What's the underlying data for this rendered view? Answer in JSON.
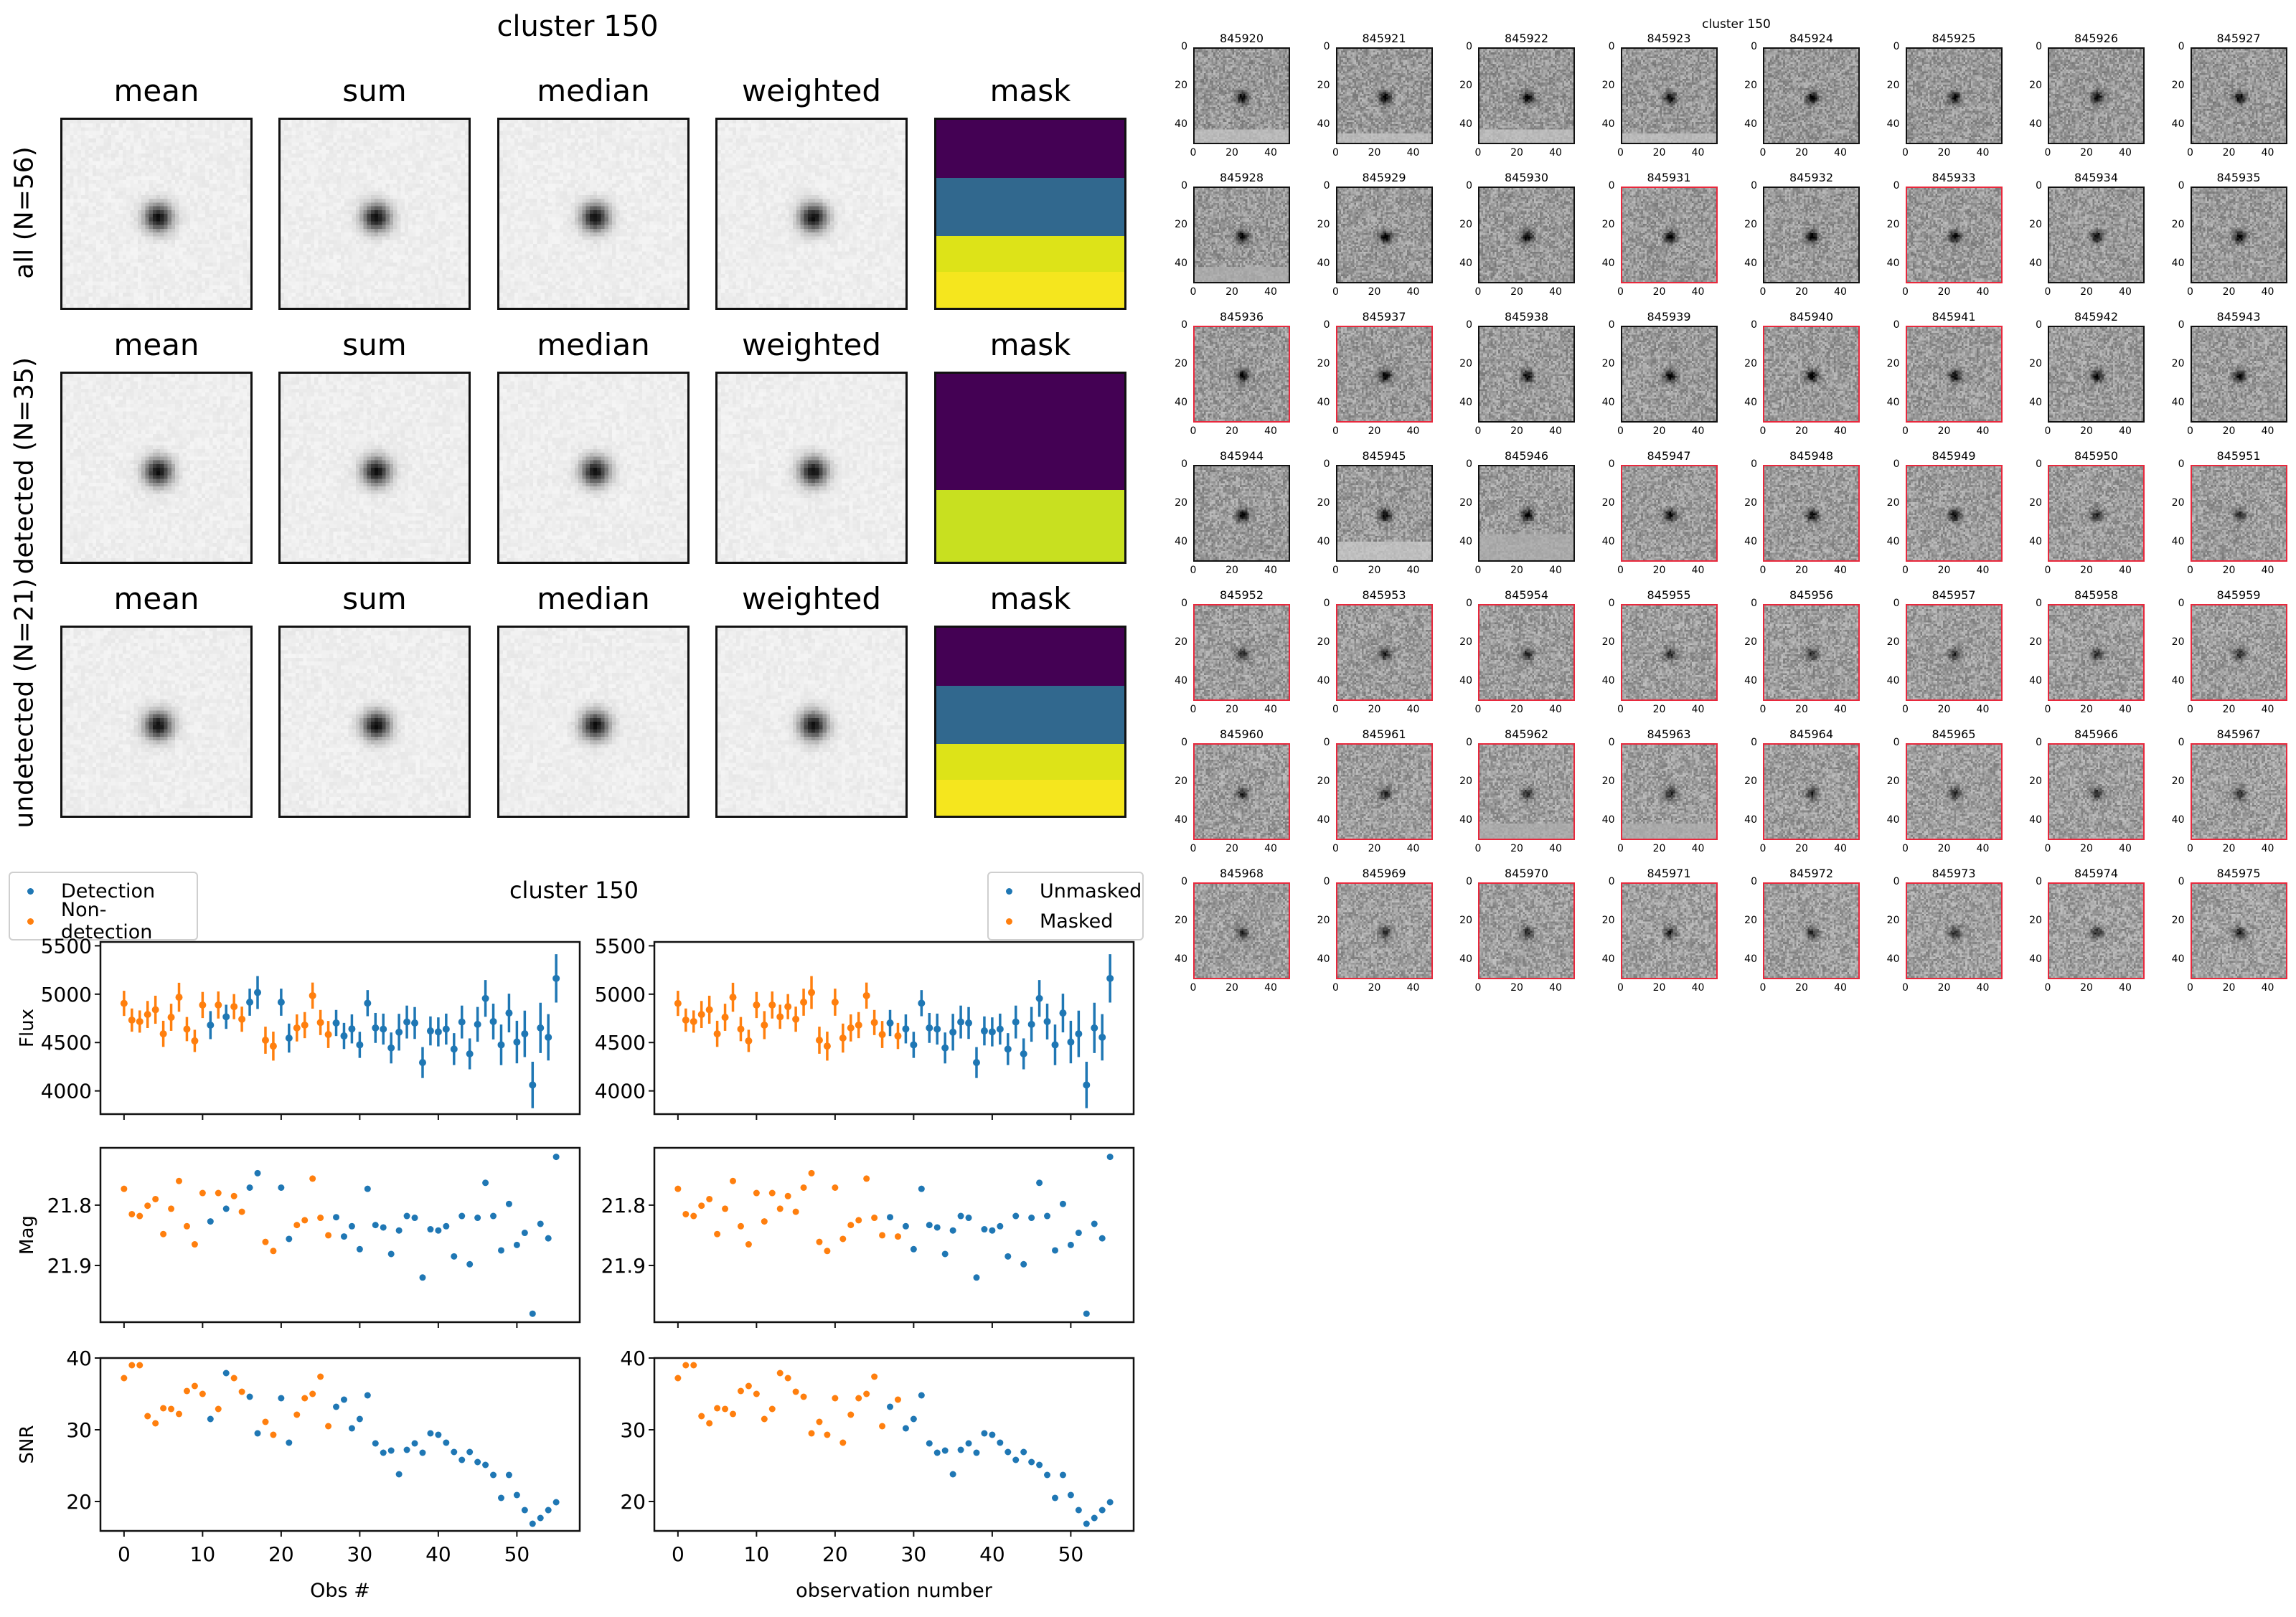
{
  "stamps_figure": {
    "title": "cluster 150",
    "columns": [
      "mean",
      "sum",
      "median",
      "weighted",
      "mask"
    ],
    "rows": [
      {
        "label": "all (N=56)",
        "mask_bands": [
          "#440154",
          "#31688e",
          "#dde318",
          "#f5e61e"
        ]
      },
      {
        "label": "detected (N=35)",
        "mask_bands": [
          "#440154",
          "#440154",
          "#c8e020",
          "#c8e020"
        ]
      },
      {
        "label": "undetected (N=21)",
        "mask_bands": [
          "#440154",
          "#31688e",
          "#dde318",
          "#f5e61e"
        ]
      }
    ]
  },
  "thumbnails_figure": {
    "title": "cluster 150",
    "axis_ticks": [
      "0",
      "20",
      "40"
    ],
    "masked_border_color": "#e8283c",
    "items": [
      {
        "id": "845920",
        "masked": false
      },
      {
        "id": "845921",
        "masked": false
      },
      {
        "id": "845922",
        "masked": false
      },
      {
        "id": "845923",
        "masked": false
      },
      {
        "id": "845924",
        "masked": false
      },
      {
        "id": "845925",
        "masked": false
      },
      {
        "id": "845926",
        "masked": false
      },
      {
        "id": "845927",
        "masked": false
      },
      {
        "id": "845928",
        "masked": false
      },
      {
        "id": "845929",
        "masked": false
      },
      {
        "id": "845930",
        "masked": false
      },
      {
        "id": "845931",
        "masked": true
      },
      {
        "id": "845932",
        "masked": false
      },
      {
        "id": "845933",
        "masked": true
      },
      {
        "id": "845934",
        "masked": false
      },
      {
        "id": "845935",
        "masked": false
      },
      {
        "id": "845936",
        "masked": true
      },
      {
        "id": "845937",
        "masked": true
      },
      {
        "id": "845938",
        "masked": false
      },
      {
        "id": "845939",
        "masked": false
      },
      {
        "id": "845940",
        "masked": true
      },
      {
        "id": "845941",
        "masked": true
      },
      {
        "id": "845942",
        "masked": false
      },
      {
        "id": "845943",
        "masked": false
      },
      {
        "id": "845944",
        "masked": false
      },
      {
        "id": "845945",
        "masked": false
      },
      {
        "id": "845946",
        "masked": false
      },
      {
        "id": "845947",
        "masked": true
      },
      {
        "id": "845948",
        "masked": true
      },
      {
        "id": "845949",
        "masked": true
      },
      {
        "id": "845950",
        "masked": true
      },
      {
        "id": "845951",
        "masked": true
      },
      {
        "id": "845952",
        "masked": true
      },
      {
        "id": "845953",
        "masked": true
      },
      {
        "id": "845954",
        "masked": true
      },
      {
        "id": "845955",
        "masked": true
      },
      {
        "id": "845956",
        "masked": true
      },
      {
        "id": "845957",
        "masked": true
      },
      {
        "id": "845958",
        "masked": true
      },
      {
        "id": "845959",
        "masked": true
      },
      {
        "id": "845960",
        "masked": true
      },
      {
        "id": "845961",
        "masked": true
      },
      {
        "id": "845962",
        "masked": true
      },
      {
        "id": "845963",
        "masked": true
      },
      {
        "id": "845964",
        "masked": true
      },
      {
        "id": "845965",
        "masked": true
      },
      {
        "id": "845966",
        "masked": true
      },
      {
        "id": "845967",
        "masked": true
      },
      {
        "id": "845968",
        "masked": true
      },
      {
        "id": "845969",
        "masked": true
      },
      {
        "id": "845970",
        "masked": true
      },
      {
        "id": "845971",
        "masked": true
      },
      {
        "id": "845972",
        "masked": true
      },
      {
        "id": "845973",
        "masked": true
      },
      {
        "id": "845974",
        "masked": true
      },
      {
        "id": "845975",
        "masked": true
      }
    ]
  },
  "chart_data": {
    "type": "scatter",
    "title": "cluster 150",
    "colors": {
      "blue": "#1f77b4",
      "orange": "#ff7f0e"
    },
    "x": [
      0,
      1,
      2,
      3,
      4,
      5,
      6,
      7,
      8,
      9,
      10,
      11,
      12,
      13,
      14,
      15,
      16,
      17,
      18,
      19,
      20,
      21,
      22,
      23,
      24,
      25,
      26,
      27,
      28,
      29,
      30,
      31,
      32,
      33,
      34,
      35,
      36,
      37,
      38,
      39,
      40,
      41,
      42,
      43,
      44,
      45,
      46,
      47,
      48,
      49,
      50,
      51,
      52,
      53,
      54,
      55
    ],
    "flux": [
      4905,
      4732,
      4717,
      4790,
      4839,
      4590,
      4761,
      4968,
      4639,
      4517,
      4888,
      4680,
      4888,
      4766,
      4871,
      4741,
      4917,
      5017,
      4524,
      4463,
      4917,
      4546,
      4651,
      4680,
      4985,
      4707,
      4583,
      4702,
      4568,
      4641,
      4476,
      4907,
      4651,
      4639,
      4444,
      4607,
      4712,
      4702,
      4293,
      4620,
      4610,
      4639,
      4432,
      4712,
      4383,
      4688,
      4956,
      4717,
      4476,
      4805,
      4505,
      4590,
      4061,
      4651,
      4554,
      5163
    ],
    "flux_err": [
      130,
      120,
      115,
      140,
      145,
      135,
      140,
      150,
      125,
      115,
      135,
      145,
      140,
      125,
      130,
      130,
      140,
      170,
      140,
      150,
      140,
      150,
      140,
      135,
      135,
      130,
      140,
      135,
      135,
      150,
      135,
      135,
      155,
      160,
      160,
      190,
      170,
      165,
      160,
      150,
      150,
      160,
      165,
      170,
      160,
      180,
      190,
      185,
      210,
      200,
      220,
      240,
      240,
      260,
      240,
      250
    ],
    "mag": [
      21.773,
      21.815,
      21.818,
      21.801,
      21.79,
      21.848,
      21.806,
      21.76,
      21.835,
      21.865,
      21.78,
      21.827,
      21.78,
      21.806,
      21.785,
      21.811,
      21.771,
      21.747,
      21.861,
      21.876,
      21.771,
      21.856,
      21.833,
      21.825,
      21.756,
      21.821,
      21.85,
      21.82,
      21.852,
      21.835,
      21.873,
      21.773,
      21.833,
      21.837,
      21.881,
      21.842,
      21.818,
      21.821,
      21.92,
      21.84,
      21.842,
      21.835,
      21.885,
      21.818,
      21.898,
      21.821,
      21.763,
      21.818,
      21.875,
      21.798,
      21.866,
      21.846,
      21.98,
      21.831,
      21.855,
      21.72
    ],
    "snr": [
      37.2,
      39.0,
      39.0,
      31.9,
      30.9,
      33.0,
      32.9,
      32.2,
      35.4,
      36.1,
      35.0,
      31.5,
      32.9,
      37.9,
      37.2,
      35.3,
      34.6,
      29.5,
      31.1,
      29.3,
      34.4,
      28.2,
      32.1,
      34.4,
      35.0,
      37.4,
      30.5,
      33.2,
      34.2,
      30.2,
      31.5,
      34.8,
      28.1,
      26.8,
      27.1,
      23.8,
      27.2,
      28.1,
      26.8,
      29.5,
      29.3,
      28.2,
      26.9,
      25.8,
      26.9,
      25.5,
      25.1,
      23.7,
      20.5,
      23.7,
      20.9,
      18.8,
      16.9,
      17.7,
      18.8,
      19.9
    ],
    "detected": [
      false,
      false,
      false,
      false,
      false,
      false,
      false,
      false,
      false,
      false,
      false,
      true,
      false,
      true,
      false,
      false,
      true,
      true,
      false,
      false,
      true,
      true,
      false,
      false,
      false,
      false,
      false,
      true,
      true,
      true,
      true,
      true,
      true,
      true,
      true,
      true,
      true,
      true,
      true,
      true,
      true,
      true,
      true,
      true,
      true,
      true,
      true,
      true,
      true,
      true,
      true,
      true,
      true,
      true,
      true,
      true
    ],
    "masked": [
      true,
      true,
      true,
      true,
      true,
      true,
      true,
      true,
      true,
      true,
      true,
      true,
      true,
      true,
      true,
      true,
      true,
      true,
      true,
      true,
      true,
      true,
      true,
      true,
      true,
      true,
      true,
      false,
      true,
      false,
      false,
      false,
      false,
      false,
      false,
      false,
      false,
      false,
      false,
      false,
      false,
      false,
      false,
      false,
      false,
      false,
      false,
      false,
      false,
      false,
      false,
      false,
      false,
      false,
      false,
      false
    ],
    "panels": {
      "flux": {
        "ylabel": "Flux",
        "ylim": [
          3760,
          5540
        ],
        "yticks": [
          4000,
          4500,
          5000,
          5500
        ],
        "tick_labels": [
          "4000",
          "4500",
          "5000",
          "5500"
        ]
      },
      "mag": {
        "ylabel": "Mag",
        "ylim": [
          21.994,
          21.705
        ],
        "yticks": [
          21.8,
          21.9
        ],
        "tick_labels": [
          "21.8",
          "21.9"
        ],
        "inverted": true
      },
      "snr": {
        "ylabel": "SNR",
        "ylim": [
          15.9,
          40
        ],
        "yticks": [
          20,
          30,
          40
        ],
        "tick_labels": [
          "20",
          "30",
          "40"
        ]
      }
    },
    "xlim": [
      -3,
      58
    ],
    "xticks": [
      0,
      10,
      20,
      30,
      40,
      50
    ],
    "xtick_labels": [
      "0",
      "10",
      "20",
      "30",
      "40",
      "50"
    ],
    "left": {
      "xlabel": "Obs #",
      "color_by": "detected",
      "legend": [
        "Detection",
        "Non-detection"
      ],
      "legend_loc": "upper-left"
    },
    "right": {
      "xlabel": "observation number",
      "color_by": "masked_inverse",
      "legend": [
        "Unmasked",
        "Masked"
      ],
      "legend_loc": "upper-right"
    }
  }
}
